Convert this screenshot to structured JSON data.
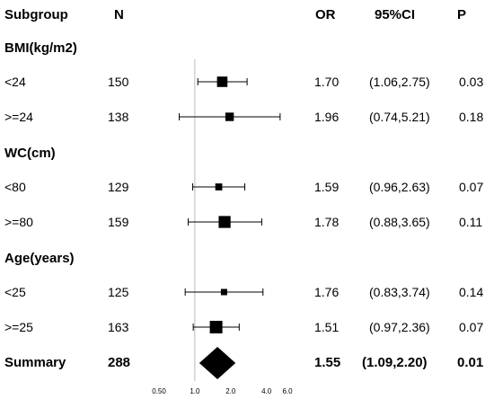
{
  "headers": {
    "subgroup": "Subgroup",
    "n": "N",
    "or": "OR",
    "ci": "95%CI",
    "p": "P"
  },
  "chart_data": {
    "type": "forest",
    "x_scale": "log",
    "xlim": [
      0.5,
      6.0
    ],
    "x_ticks": [
      "0.50",
      "1.0",
      "2.0",
      "4.0",
      "6.0"
    ],
    "reference_line": 1.0,
    "groups": [
      {
        "label": "BMI(kg/m2)",
        "rows": [
          {
            "label": "<24",
            "n": "150",
            "or": 1.7,
            "lo": 1.06,
            "hi": 2.75,
            "or_text": "1.70",
            "ci_text": "(1.06,2.75)",
            "p": "0.03"
          },
          {
            "label": ">=24",
            "n": "138",
            "or": 1.96,
            "lo": 0.74,
            "hi": 5.21,
            "or_text": "1.96",
            "ci_text": "(0.74,5.21)",
            "p": "0.18"
          }
        ]
      },
      {
        "label": "WC(cm)",
        "rows": [
          {
            "label": "<80",
            "n": "129",
            "or": 1.59,
            "lo": 0.96,
            "hi": 2.63,
            "or_text": "1.59",
            "ci_text": "(0.96,2.63)",
            "p": "0.07"
          },
          {
            "label": ">=80",
            "n": "159",
            "or": 1.78,
            "lo": 0.88,
            "hi": 3.65,
            "or_text": "1.78",
            "ci_text": "(0.88,3.65)",
            "p": "0.11"
          }
        ]
      },
      {
        "label": "Age(years)",
        "rows": [
          {
            "label": "<25",
            "n": "125",
            "or": 1.76,
            "lo": 0.83,
            "hi": 3.74,
            "or_text": "1.76",
            "ci_text": "(0.83,3.74)",
            "p": "0.14"
          },
          {
            "label": ">=25",
            "n": "163",
            "or": 1.51,
            "lo": 0.97,
            "hi": 2.36,
            "or_text": "1.51",
            "ci_text": "(0.97,2.36)",
            "p": "0.07"
          }
        ]
      }
    ],
    "summary": {
      "label": "Summary",
      "n": "288",
      "or": 1.55,
      "lo": 1.09,
      "hi": 2.2,
      "or_text": "1.55",
      "ci_text": "(1.09,2.20)",
      "p": "0.01"
    }
  }
}
